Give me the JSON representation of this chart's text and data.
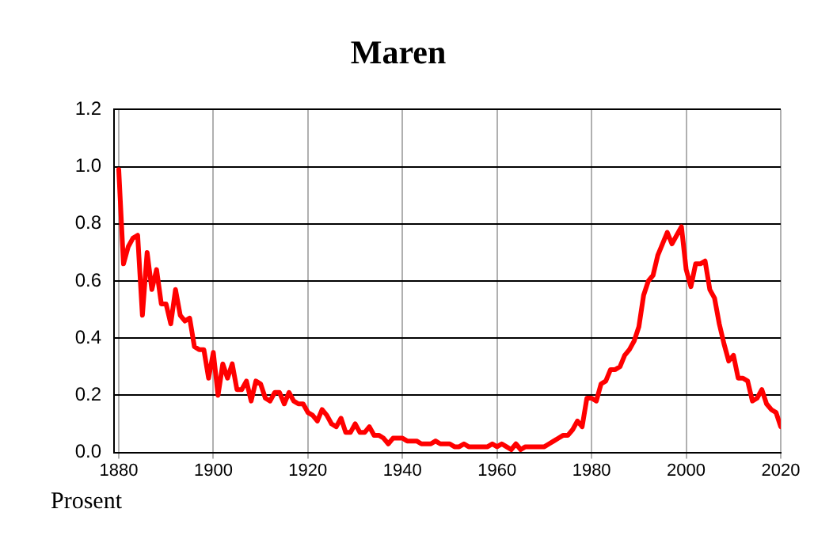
{
  "chart_data": {
    "type": "line",
    "title": "Maren",
    "ylabel": "Prosent",
    "x": [
      1880,
      1881,
      1882,
      1883,
      1884,
      1885,
      1886,
      1887,
      1888,
      1889,
      1890,
      1891,
      1892,
      1893,
      1894,
      1895,
      1896,
      1897,
      1898,
      1899,
      1900,
      1901,
      1902,
      1903,
      1904,
      1905,
      1906,
      1907,
      1908,
      1909,
      1910,
      1911,
      1912,
      1913,
      1914,
      1915,
      1916,
      1917,
      1918,
      1919,
      1920,
      1921,
      1922,
      1923,
      1924,
      1925,
      1926,
      1927,
      1928,
      1929,
      1930,
      1931,
      1932,
      1933,
      1934,
      1935,
      1936,
      1937,
      1938,
      1939,
      1940,
      1941,
      1942,
      1943,
      1944,
      1945,
      1946,
      1947,
      1948,
      1949,
      1950,
      1951,
      1952,
      1953,
      1954,
      1955,
      1956,
      1957,
      1958,
      1959,
      1960,
      1961,
      1962,
      1963,
      1964,
      1965,
      1966,
      1967,
      1968,
      1969,
      1970,
      1971,
      1972,
      1973,
      1974,
      1975,
      1976,
      1977,
      1978,
      1979,
      1980,
      1981,
      1982,
      1983,
      1984,
      1985,
      1986,
      1987,
      1988,
      1989,
      1990,
      1991,
      1992,
      1993,
      1994,
      1995,
      1996,
      1997,
      1998,
      1999,
      2000,
      2001,
      2002,
      2003,
      2004,
      2005,
      2006,
      2007,
      2008,
      2009,
      2010,
      2011,
      2012,
      2013,
      2014,
      2015,
      2016,
      2017,
      2018,
      2019,
      2020
    ],
    "series": [
      {
        "color": "#ff0000",
        "values": [
          0.99,
          0.66,
          0.72,
          0.75,
          0.76,
          0.48,
          0.7,
          0.57,
          0.64,
          0.52,
          0.52,
          0.45,
          0.57,
          0.48,
          0.46,
          0.47,
          0.37,
          0.36,
          0.36,
          0.26,
          0.35,
          0.2,
          0.31,
          0.26,
          0.31,
          0.22,
          0.22,
          0.25,
          0.18,
          0.25,
          0.24,
          0.19,
          0.18,
          0.21,
          0.21,
          0.17,
          0.21,
          0.18,
          0.17,
          0.17,
          0.14,
          0.13,
          0.11,
          0.15,
          0.13,
          0.1,
          0.09,
          0.12,
          0.07,
          0.07,
          0.1,
          0.07,
          0.07,
          0.09,
          0.06,
          0.06,
          0.05,
          0.03,
          0.05,
          0.05,
          0.05,
          0.04,
          0.04,
          0.04,
          0.03,
          0.03,
          0.03,
          0.04,
          0.03,
          0.03,
          0.03,
          0.02,
          0.02,
          0.03,
          0.02,
          0.02,
          0.02,
          0.02,
          0.02,
          0.03,
          0.02,
          0.03,
          0.02,
          0.01,
          0.03,
          0.01,
          0.02,
          0.02,
          0.02,
          0.02,
          0.02,
          0.03,
          0.04,
          0.05,
          0.06,
          0.06,
          0.08,
          0.11,
          0.09,
          0.19,
          0.19,
          0.18,
          0.24,
          0.25,
          0.29,
          0.29,
          0.3,
          0.34,
          0.36,
          0.39,
          0.44,
          0.55,
          0.6,
          0.62,
          0.69,
          0.73,
          0.77,
          0.73,
          0.76,
          0.79,
          0.64,
          0.58,
          0.66,
          0.66,
          0.67,
          0.57,
          0.54,
          0.45,
          0.38,
          0.32,
          0.34,
          0.26,
          0.26,
          0.25,
          0.18,
          0.19,
          0.22,
          0.17,
          0.15,
          0.14,
          0.09
        ]
      }
    ],
    "xlim": [
      1879,
      2020
    ],
    "xticks": [
      1880,
      1900,
      1920,
      1940,
      1960,
      1980,
      2000,
      2020
    ],
    "ylim": [
      0,
      1.2
    ],
    "yticks": [
      {
        "value": 0,
        "label": "0.0"
      },
      {
        "value": 0.2,
        "label": "0.2"
      },
      {
        "value": 0.4,
        "label": "0.4"
      },
      {
        "value": 0.6,
        "label": "0.6"
      },
      {
        "value": 0.8,
        "label": "0.8"
      },
      {
        "value": 1,
        "label": "1.0"
      },
      {
        "value": 1.2,
        "label": "1.2"
      }
    ],
    "grid": true,
    "marker": "none",
    "line_style": "solid"
  }
}
